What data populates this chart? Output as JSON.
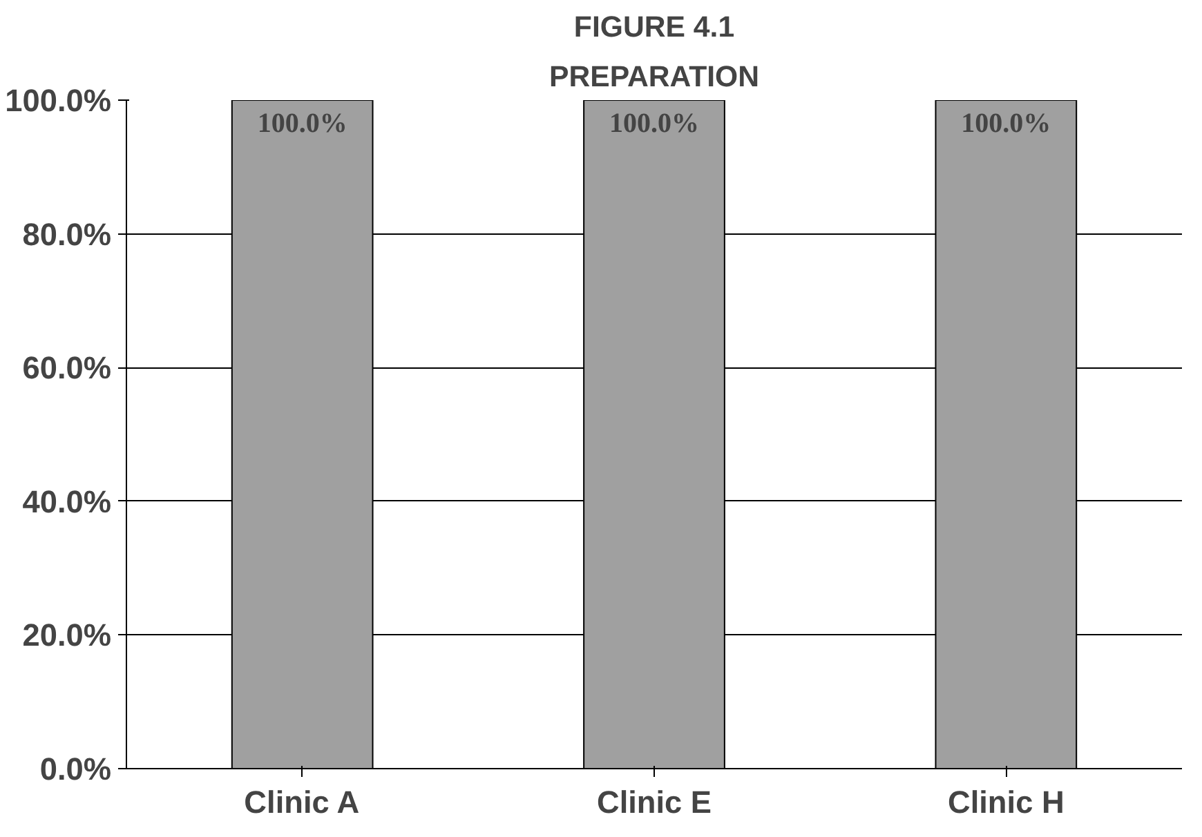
{
  "chart_data": {
    "type": "bar",
    "title": "FIGURE 4.1",
    "subtitle": "PREPARATION",
    "categories": [
      "Clinic A",
      "Clinic E",
      "Clinic H"
    ],
    "values": [
      100,
      100,
      100
    ],
    "value_labels": [
      "100.0%",
      "100.0%",
      "100.0%"
    ],
    "color": "#a0a0a0",
    "ylim": [
      0,
      100
    ],
    "yticks": [
      {
        "value": 0,
        "label": "0.0%"
      },
      {
        "value": 20,
        "label": "20.0%"
      },
      {
        "value": 40,
        "label": "40.0%"
      },
      {
        "value": 60,
        "label": "60.0%"
      },
      {
        "value": 80,
        "label": "80.0%"
      },
      {
        "value": 100,
        "label": "100.0%"
      }
    ],
    "grid": "y"
  }
}
